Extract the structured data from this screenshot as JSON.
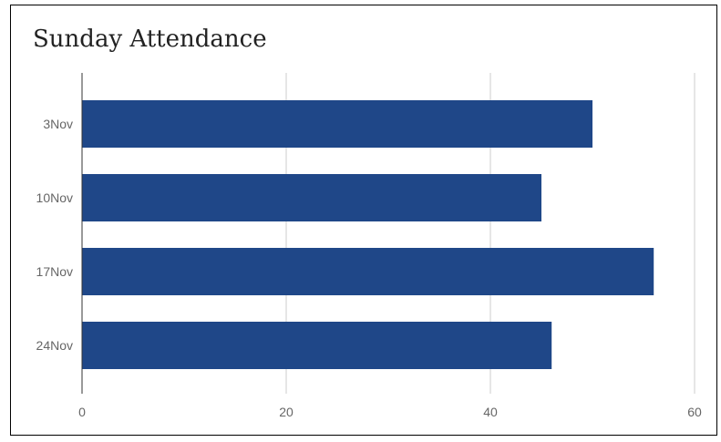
{
  "chart_data": {
    "type": "bar",
    "orientation": "horizontal",
    "title": "Sunday Attendance",
    "categories": [
      "3Nov",
      "10Nov",
      "17Nov",
      "24Nov"
    ],
    "values": [
      50,
      45,
      56,
      46
    ],
    "xlim": [
      0,
      60
    ],
    "x_ticks": [
      0,
      20,
      40,
      60
    ],
    "grid": true,
    "legend": "none",
    "bar_color": "#1f4788",
    "grid_color": "#cccccc"
  }
}
